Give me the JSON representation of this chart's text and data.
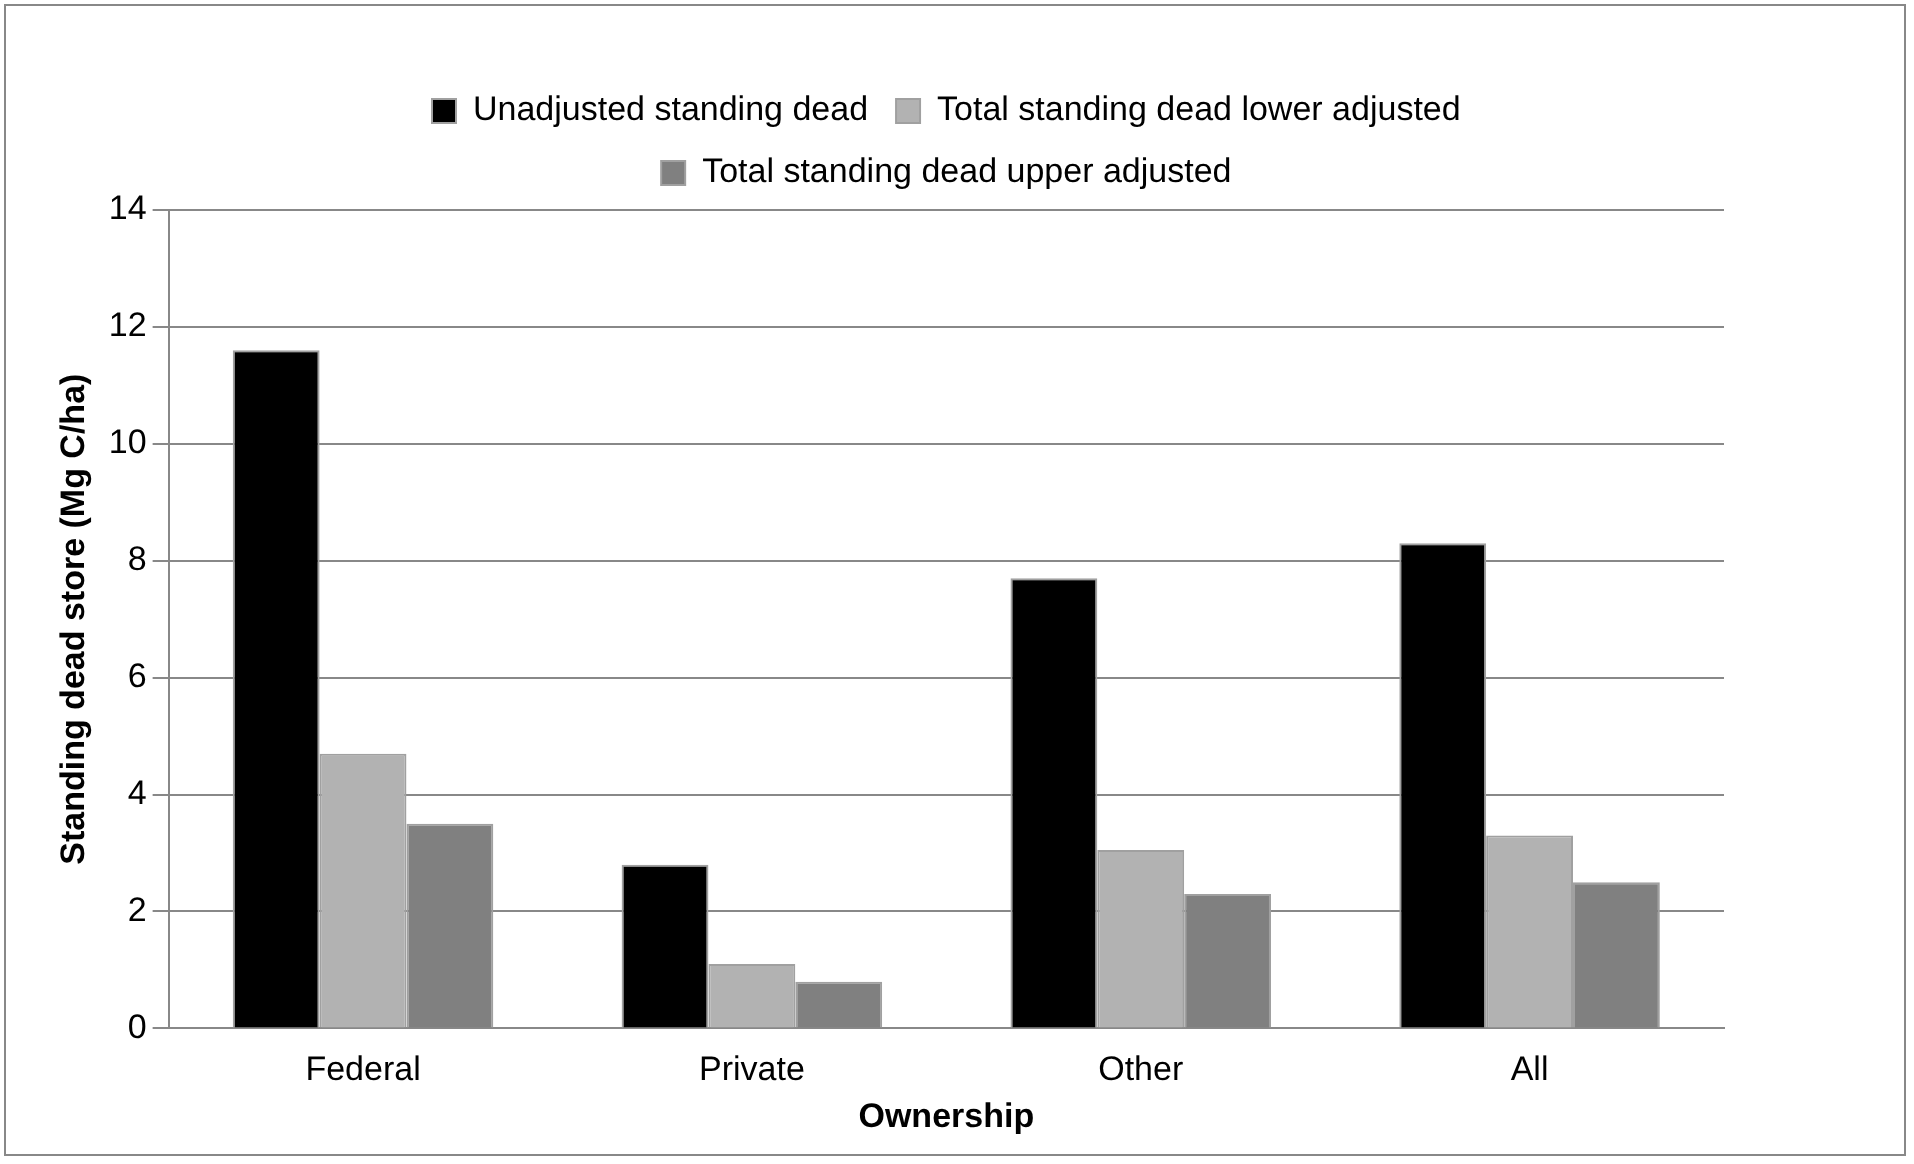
{
  "chart_data": {
    "type": "bar",
    "xlabel": "Ownership",
    "ylabel": "Standing dead store (Mg C/ha)",
    "categories": [
      "Federal",
      "Private",
      "Other",
      "All"
    ],
    "series": [
      {
        "name": "Unadjusted standing dead",
        "color": "#000000",
        "values": [
          11.6,
          2.8,
          7.7,
          8.3
        ]
      },
      {
        "name": "Total standing dead lower adjusted",
        "color": "#b2b2b2",
        "values": [
          4.7,
          1.1,
          3.05,
          3.3
        ]
      },
      {
        "name": "Total standing dead upper adjusted",
        "color": "#808080",
        "values": [
          3.5,
          0.8,
          2.3,
          2.5
        ]
      }
    ],
    "ylim": [
      0,
      14
    ],
    "yticks": [
      0,
      2,
      4,
      6,
      8,
      10,
      12,
      14
    ],
    "grid": "y",
    "legend": "top"
  }
}
